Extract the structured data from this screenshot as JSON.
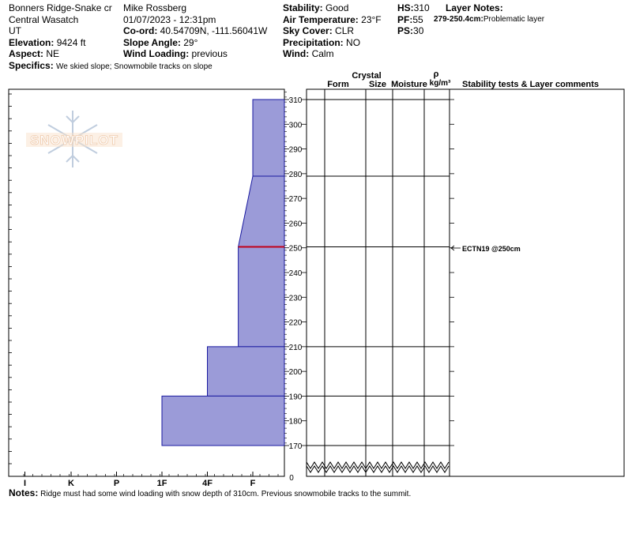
{
  "header": {
    "location": "Bonners Ridge-Snake cr",
    "range": "Central Wasatch",
    "state": "UT",
    "elevation_label": "Elevation:",
    "elevation": "9424 ft",
    "aspect_label": "Aspect:",
    "aspect": "NE",
    "specifics_label": "Specifics:",
    "specifics": "We skied slope; Snowmobile tracks on slope",
    "observer": "Mike Rossberg",
    "datetime": "01/07/2023 - 12:31pm",
    "coord_label": "Co-ord:",
    "coord": "40.54709N, -111.56041W",
    "slope_label": "Slope Angle:",
    "slope": "29°",
    "wind_loading_label": "Wind Loading:",
    "wind_loading": "previous",
    "stability_label": "Stability:",
    "stability": "Good",
    "air_temp_label": "Air Temperature:",
    "air_temp": "23°F",
    "sky_label": "Sky Cover:",
    "sky": "CLR",
    "precip_label": "Precipitation:",
    "precip": "NO",
    "wind_label": "Wind:",
    "wind": "Calm",
    "hs_label": "HS:",
    "hs": "310",
    "pf_label": "PF:",
    "pf": "55",
    "ps_label": "PS:",
    "ps": "30",
    "layer_notes_label": "Layer Notes:",
    "layer_note_range": "279-250.4cm:",
    "layer_note_text": "Problematic layer"
  },
  "logo_text": "SNOWPILOT",
  "columns": {
    "form": "Form",
    "crystal": "Crystal",
    "size": "Size",
    "moisture": "Moisture",
    "rho": "ρ",
    "density_unit": "kg/m³",
    "stability": "Stability tests & Layer comments"
  },
  "stability_test": "ECTN19 @250cm",
  "notes_label": "Notes:",
  "notes": "Ridge must had some wind loading with snow depth of 310cm. Previous snowmobile tracks to the summit.",
  "chart_data": {
    "type": "area",
    "x_categories": [
      "I",
      "K",
      "P",
      "1F",
      "4F",
      "F"
    ],
    "y_ticks": [
      170,
      180,
      190,
      200,
      210,
      220,
      230,
      240,
      250,
      260,
      270,
      280,
      290,
      300,
      310
    ],
    "y_zero_label": "0",
    "ylim": [
      165,
      315
    ],
    "profile": [
      {
        "top": 310,
        "bottom": 279,
        "hardness_top": "F",
        "hardness_bottom": "F"
      },
      {
        "top": 279,
        "bottom": 250.4,
        "hardness_top": "F",
        "hardness_bottom": "F+"
      },
      {
        "top": 250.4,
        "bottom": 210,
        "hardness_top": "F+",
        "hardness_bottom": "F+"
      },
      {
        "top": 210,
        "bottom": 190,
        "hardness_top": "4F",
        "hardness_bottom": "4F"
      },
      {
        "top": 190,
        "bottom": 170,
        "hardness_top": "1F",
        "hardness_bottom": "1F"
      }
    ],
    "hardness_index": {
      "I": 5,
      "K": 4,
      "P": 3,
      "1F": 2,
      "4F": 1,
      "F+": 0.32,
      "F": 0
    },
    "layer_lines": [
      310,
      279,
      250.4,
      210,
      190,
      170
    ],
    "problem_layer": 250.4,
    "colors": {
      "fill": "#9b9bd8",
      "edge": "#1a1aa0",
      "problem": "#c0001a",
      "grid": "#000000"
    }
  }
}
